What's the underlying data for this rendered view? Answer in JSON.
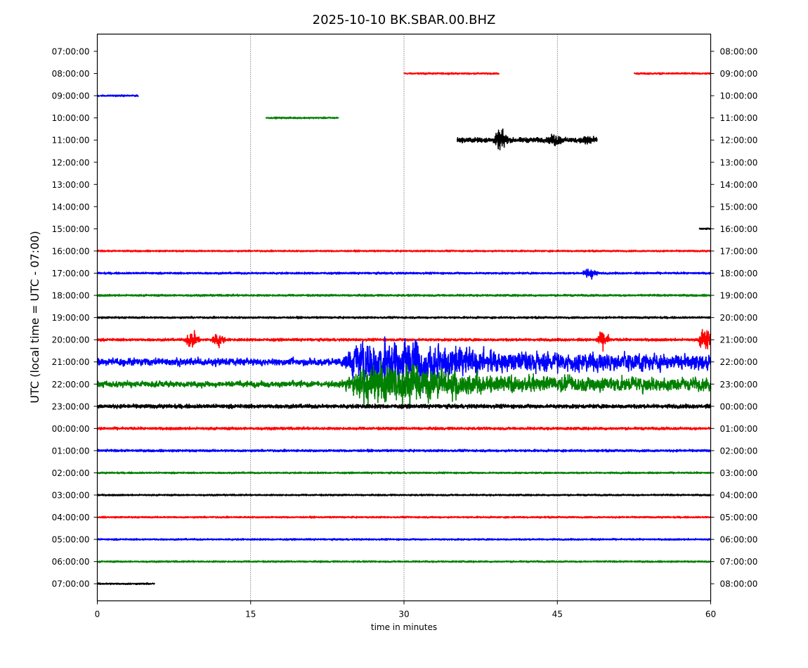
{
  "chart_data": {
    "type": "line",
    "title": "2025-10-10 BK.SBAR.00.BHZ",
    "xlabel": "time in minutes",
    "ylabel": "UTC (local time = UTC - 07:00)",
    "xlim": [
      0,
      60
    ],
    "x_ticks": [
      "0",
      "15",
      "30",
      "45",
      "60"
    ],
    "x_tick_values": [
      0,
      15,
      30,
      45,
      60
    ],
    "grid": "vertical dotted at 15, 30, 45",
    "colors": [
      "#000000",
      "#ff0000",
      "#0000ff",
      "#008000"
    ],
    "color_cycle": [
      "black",
      "red",
      "blue",
      "green"
    ],
    "left_ticks": [
      "07:00:00",
      "08:00:00",
      "09:00:00",
      "10:00:00",
      "11:00:00",
      "12:00:00",
      "13:00:00",
      "14:00:00",
      "15:00:00",
      "16:00:00",
      "17:00:00",
      "18:00:00",
      "19:00:00",
      "20:00:00",
      "21:00:00",
      "22:00:00",
      "23:00:00",
      "00:00:00",
      "01:00:00",
      "02:00:00",
      "03:00:00",
      "04:00:00",
      "05:00:00",
      "06:00:00",
      "07:00:00"
    ],
    "right_ticks": [
      "08:00:00",
      "09:00:00",
      "10:00:00",
      "11:00:00",
      "12:00:00",
      "13:00:00",
      "14:00:00",
      "15:00:00",
      "16:00:00",
      "17:00:00",
      "18:00:00",
      "19:00:00",
      "20:00:00",
      "21:00:00",
      "22:00:00",
      "23:00:00",
      "00:00:00",
      "01:00:00",
      "02:00:00",
      "03:00:00",
      "04:00:00",
      "05:00:00",
      "06:00:00",
      "07:00:00",
      "08:00:00"
    ],
    "rows": [
      {
        "row": 0,
        "color": "black",
        "segments": []
      },
      {
        "row": 1,
        "color": "red",
        "segments": [
          [
            30,
            39.3
          ],
          [
            52.5,
            60
          ]
        ],
        "amp": 0.05
      },
      {
        "row": 2,
        "color": "blue",
        "segments": [
          [
            0,
            4
          ]
        ],
        "amp": 0.05
      },
      {
        "row": 3,
        "color": "green",
        "segments": [
          [
            16.5,
            23.6
          ]
        ],
        "amp": 0.05
      },
      {
        "row": 4,
        "color": "black",
        "segments": [
          [
            35.2,
            48.9
          ]
        ],
        "amp": 0.15,
        "bursts": [
          [
            39.5,
            0.6
          ],
          [
            44.8,
            0.3
          ],
          [
            48.0,
            0.25
          ]
        ]
      },
      {
        "row": 5,
        "color": "red",
        "segments": []
      },
      {
        "row": 6,
        "color": "blue",
        "segments": []
      },
      {
        "row": 7,
        "color": "green",
        "segments": []
      },
      {
        "row": 8,
        "color": "black",
        "segments": [
          [
            58.9,
            60
          ]
        ],
        "amp": 0.05
      },
      {
        "row": 9,
        "color": "red",
        "segments": [
          [
            0,
            60
          ]
        ],
        "amp": 0.05
      },
      {
        "row": 10,
        "color": "blue",
        "segments": [
          [
            0,
            60
          ]
        ],
        "amp": 0.06,
        "bursts": [
          [
            48.2,
            0.4
          ]
        ]
      },
      {
        "row": 11,
        "color": "green",
        "segments": [
          [
            0,
            60
          ]
        ],
        "amp": 0.06
      },
      {
        "row": 12,
        "color": "black",
        "segments": [
          [
            0,
            60
          ]
        ],
        "amp": 0.06
      },
      {
        "row": 13,
        "color": "red",
        "segments": [
          [
            0,
            60
          ]
        ],
        "amp": 0.08,
        "bursts": [
          [
            9.3,
            0.6
          ],
          [
            11.8,
            0.4
          ],
          [
            49.5,
            0.5
          ],
          [
            59.5,
            0.9
          ]
        ]
      },
      {
        "row": 14,
        "color": "blue",
        "segments": [
          [
            0,
            60
          ]
        ],
        "amp": 0.55,
        "quake": true
      },
      {
        "row": 15,
        "color": "green",
        "segments": [
          [
            0,
            60
          ]
        ],
        "amp": 0.45,
        "quake": true
      },
      {
        "row": 16,
        "color": "black",
        "segments": [
          [
            0,
            60
          ]
        ],
        "amp": 0.12
      },
      {
        "row": 17,
        "color": "red",
        "segments": [
          [
            0,
            60
          ]
        ],
        "amp": 0.08
      },
      {
        "row": 18,
        "color": "blue",
        "segments": [
          [
            0,
            60
          ]
        ],
        "amp": 0.07
      },
      {
        "row": 19,
        "color": "green",
        "segments": [
          [
            0,
            60
          ]
        ],
        "amp": 0.05
      },
      {
        "row": 20,
        "color": "black",
        "segments": [
          [
            0,
            60
          ]
        ],
        "amp": 0.05
      },
      {
        "row": 21,
        "color": "red",
        "segments": [
          [
            0,
            60
          ]
        ],
        "amp": 0.05
      },
      {
        "row": 22,
        "color": "blue",
        "segments": [
          [
            0,
            60
          ]
        ],
        "amp": 0.05
      },
      {
        "row": 23,
        "color": "green",
        "segments": [
          [
            0,
            60
          ]
        ],
        "amp": 0.05
      },
      {
        "row": 24,
        "color": "black",
        "segments": [
          [
            0,
            5.6
          ]
        ],
        "amp": 0.05
      }
    ]
  }
}
